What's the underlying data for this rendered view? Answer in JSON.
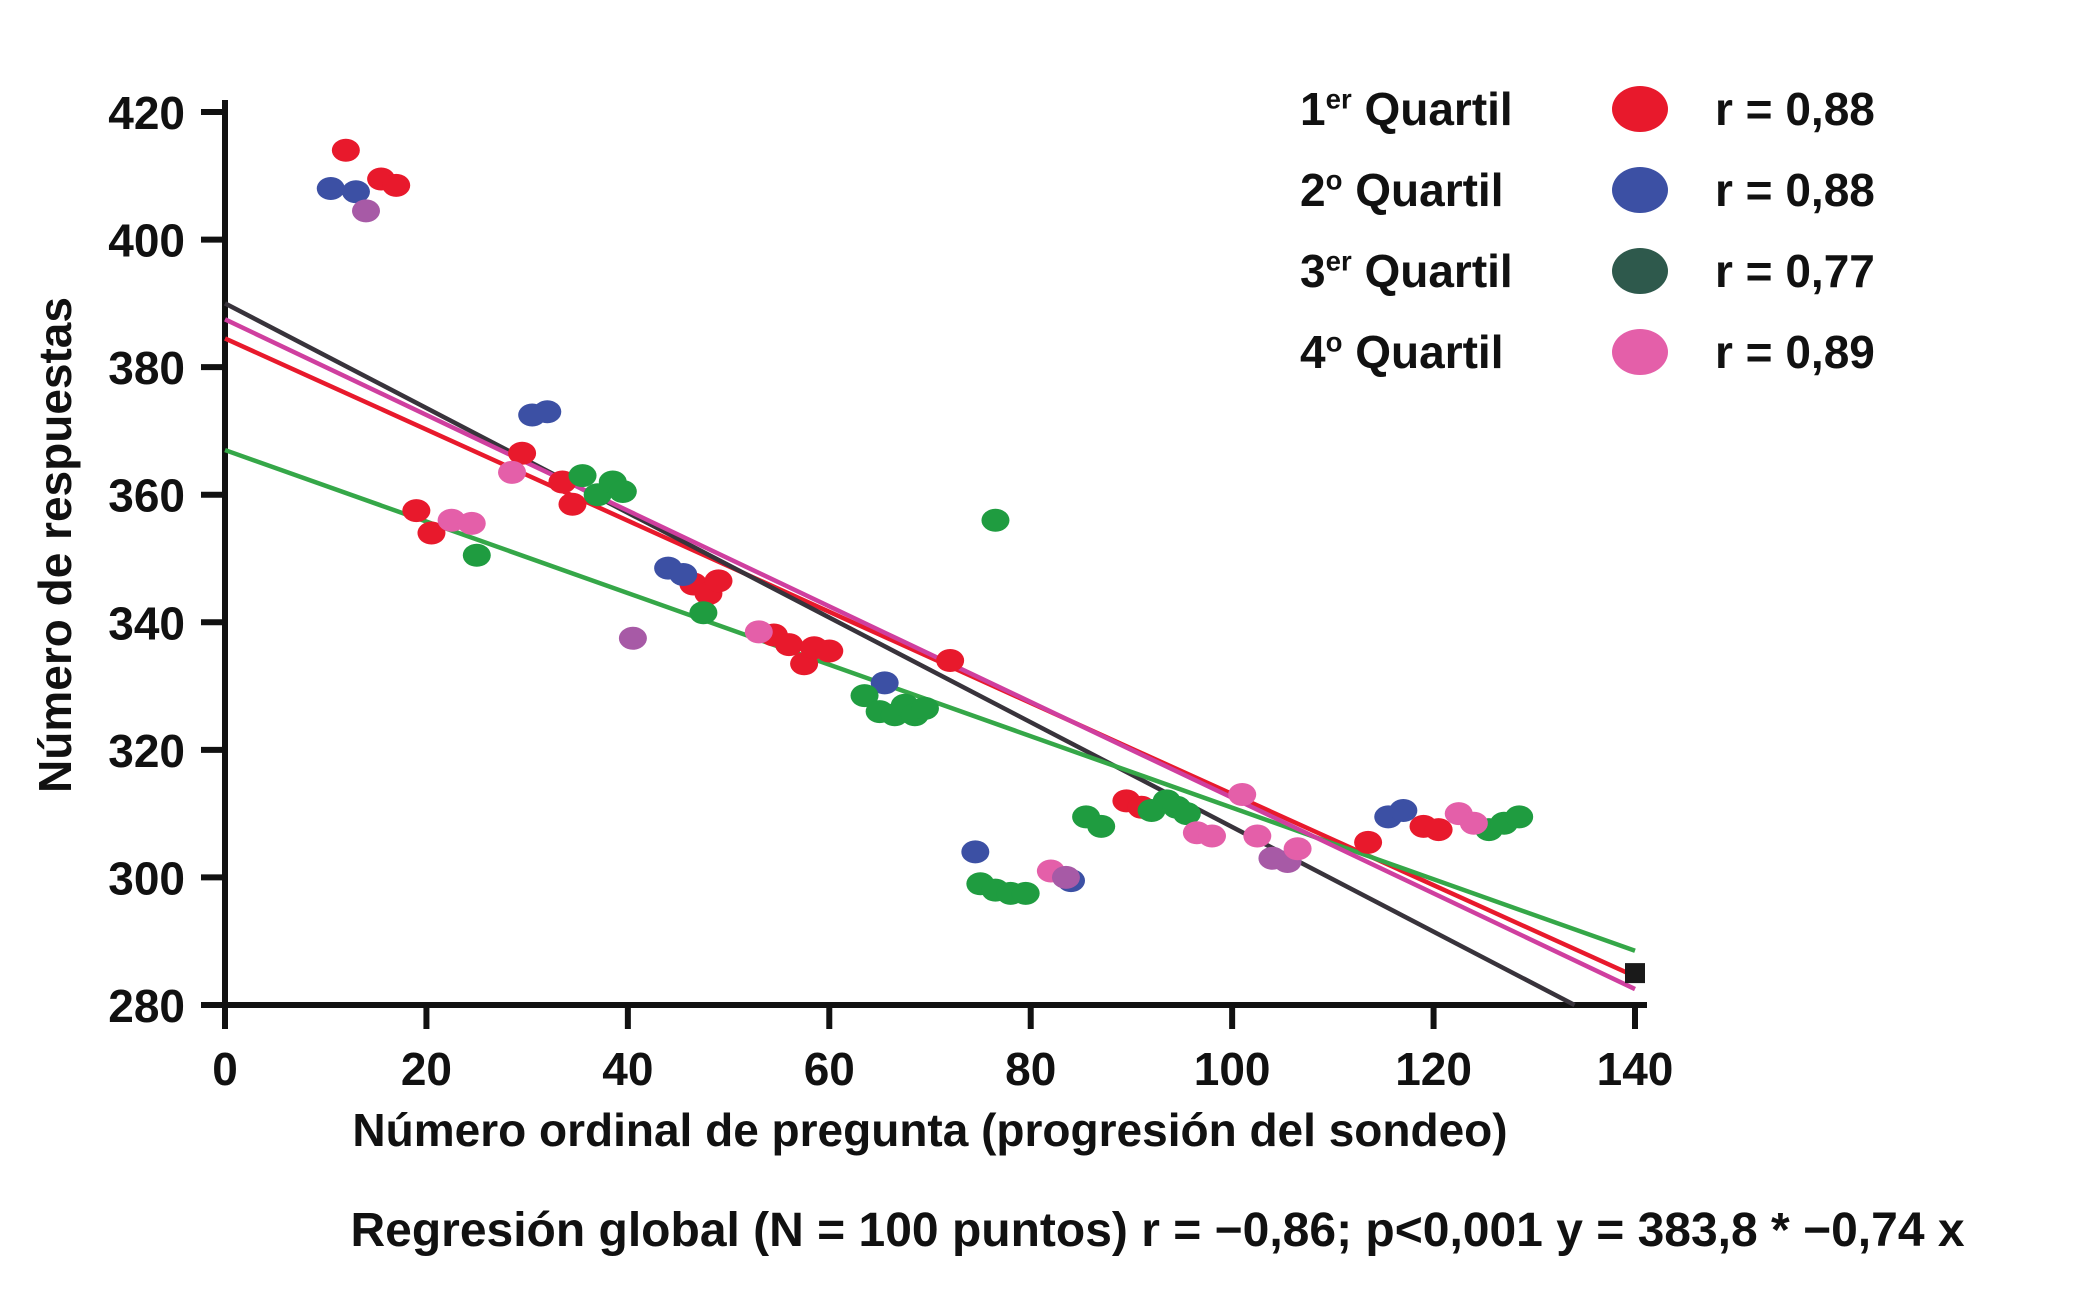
{
  "chart_data": {
    "type": "scatter",
    "title": "",
    "xlabel": "Número ordinal de pregunta (progresión del sondeo)",
    "ylabel": "Número de respuestas",
    "caption": "Regresión global (N = 100 puntos) r = −0,86; p<0,001 y = 383,8 * −0,74 x",
    "global_regression": {
      "n_points": 100,
      "r": "−0,86",
      "p": "p<0,001",
      "equation": "y = 383,8 * −0,74 x"
    },
    "xlim": [
      0,
      140
    ],
    "ylim": [
      280,
      420
    ],
    "xticks": [
      0,
      20,
      40,
      60,
      80,
      100,
      120,
      140
    ],
    "yticks": [
      280,
      300,
      320,
      340,
      360,
      380,
      400,
      420
    ],
    "grid": false,
    "legend_position": "top-right",
    "axis_color": "#111111",
    "colors": {
      "red": "#e8192c",
      "blue": "#3c50a4",
      "green": "#1f9c40",
      "teal_swatch": "#2e594c",
      "pink": "#e45fa9",
      "purple": "#a75aa6",
      "magenta_line": "#cf3f9f",
      "dark_line": "#38333b",
      "black_marker": "#1a1a1a"
    },
    "series": [
      {
        "name": "1er Quartil",
        "label_prefix": "1",
        "label_sup": "er",
        "label_rest": " Quartil",
        "r_label": "r = 0,88",
        "swatch_color": "#e8192c",
        "point_color": "#e8192c",
        "trend": {
          "x1": 0,
          "y1": 384.5,
          "x2": 140,
          "y2": 284.5,
          "color": "#e8192c"
        },
        "points": [
          [
            12,
            414
          ],
          [
            15.5,
            409.5
          ],
          [
            17,
            408.5
          ],
          [
            19,
            357.5
          ],
          [
            20.5,
            354
          ],
          [
            29.5,
            366.5
          ],
          [
            33.5,
            362
          ],
          [
            34.5,
            358.5
          ],
          [
            46.5,
            346
          ],
          [
            48,
            344.5
          ],
          [
            49,
            346.5
          ],
          [
            54.5,
            338
          ],
          [
            56,
            336.5
          ],
          [
            57.5,
            333.5
          ],
          [
            58.5,
            336
          ],
          [
            60,
            335.5
          ],
          [
            72,
            334
          ],
          [
            89.5,
            312
          ],
          [
            91,
            311
          ],
          [
            113.5,
            305.5
          ],
          [
            119,
            308
          ],
          [
            120.5,
            307.5
          ]
        ]
      },
      {
        "name": "2º Quartil",
        "label_prefix": "2",
        "label_sup": "o",
        "label_rest": " Quartil",
        "r_label": "r = 0,88",
        "swatch_color": "#3c50a4",
        "point_color": "#3c50a4",
        "trend": {
          "x1": 0,
          "y1": 390,
          "x2": 134,
          "y2": 280,
          "color": "#38333b"
        },
        "points": [
          [
            10.5,
            408
          ],
          [
            13,
            407.5
          ],
          [
            30.5,
            372.5
          ],
          [
            32,
            373
          ],
          [
            44,
            348.5
          ],
          [
            45.5,
            347.5
          ],
          [
            65.5,
            330.5
          ],
          [
            74.5,
            304
          ],
          [
            84,
            299.5
          ],
          [
            115.5,
            309.5
          ],
          [
            117,
            310.5
          ]
        ]
      },
      {
        "name": "3er Quartil",
        "label_prefix": "3",
        "label_sup": "er",
        "label_rest": " Quartil",
        "r_label": "r = 0,77",
        "swatch_color": "#2e594c",
        "point_color": "#1f9c40",
        "trend": {
          "x1": 0,
          "y1": 367,
          "x2": 140,
          "y2": 288.5,
          "color": "#35a748"
        },
        "points": [
          [
            25,
            350.5
          ],
          [
            35.5,
            363
          ],
          [
            37,
            360
          ],
          [
            38.5,
            362
          ],
          [
            39.5,
            360.5
          ],
          [
            47.5,
            341.5
          ],
          [
            63.5,
            328.5
          ],
          [
            65,
            326
          ],
          [
            66.5,
            325.5
          ],
          [
            67.5,
            327
          ],
          [
            68.5,
            325.5
          ],
          [
            69.5,
            326.5
          ],
          [
            76.5,
            356
          ],
          [
            75,
            299
          ],
          [
            76.5,
            298
          ],
          [
            78,
            297.5
          ],
          [
            79.5,
            297.5
          ],
          [
            85.5,
            309.5
          ],
          [
            87,
            308
          ],
          [
            92,
            310.5
          ],
          [
            93.5,
            312
          ],
          [
            94.5,
            311
          ],
          [
            95.5,
            310
          ],
          [
            125.5,
            307.5
          ],
          [
            127,
            308.5
          ],
          [
            128.5,
            309.5
          ]
        ]
      },
      {
        "name": "4º Quartil",
        "label_prefix": "4",
        "label_sup": "o",
        "label_rest": " Quartil",
        "r_label": "r = 0,89",
        "swatch_color": "#e45fa9",
        "point_color": "#e45fa9",
        "trend": {
          "x1": 0,
          "y1": 387.5,
          "x2": 140,
          "y2": 282.5,
          "color": "#cf3f9f"
        },
        "points": [
          [
            14,
            404.5,
            "purple"
          ],
          [
            22.5,
            356
          ],
          [
            24.5,
            355.5
          ],
          [
            28.5,
            363.5
          ],
          [
            40.5,
            337.5,
            "purple"
          ],
          [
            53,
            338.5
          ],
          [
            82,
            301
          ],
          [
            83.5,
            300,
            "purple"
          ],
          [
            96.5,
            307
          ],
          [
            98,
            306.5
          ],
          [
            101,
            313
          ],
          [
            102.5,
            306.5
          ],
          [
            104,
            303,
            "purple"
          ],
          [
            105.5,
            302.5,
            "purple"
          ],
          [
            106.5,
            304.5
          ],
          [
            122.5,
            310
          ],
          [
            124,
            308.5
          ]
        ]
      }
    ],
    "extra_markers": [
      {
        "x": 140,
        "y": 285,
        "shape": "square",
        "color": "#1a1a1a"
      }
    ]
  }
}
